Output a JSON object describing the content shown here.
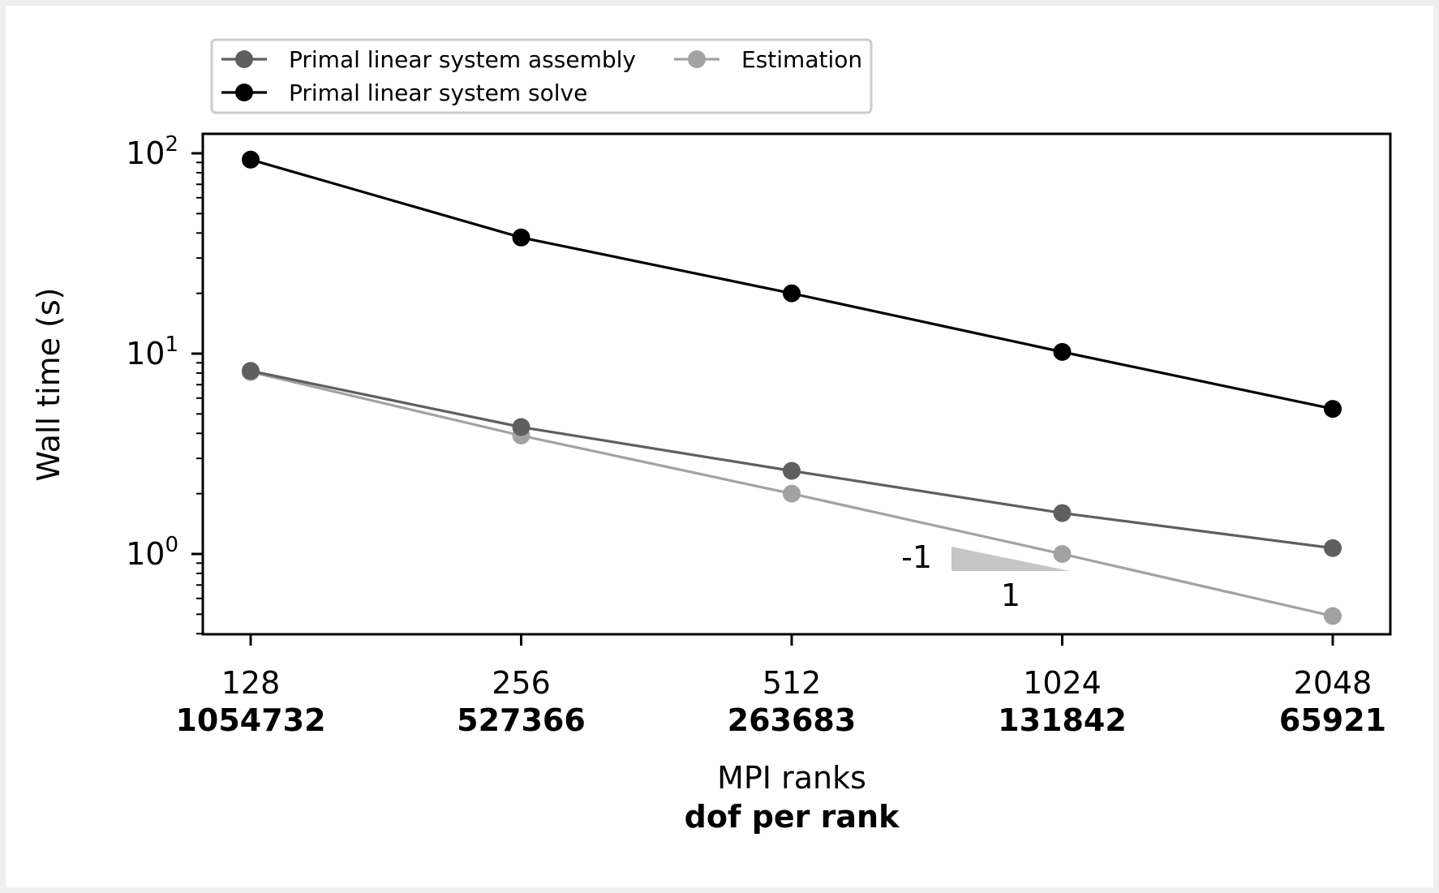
{
  "chart_data": {
    "type": "line",
    "x": [
      128,
      256,
      512,
      1024,
      2048
    ],
    "x_secondary": [
      "1054732",
      "527366",
      "263683",
      "131842",
      "65921"
    ],
    "xticklabels": [
      "128",
      "256",
      "512",
      "1024",
      "2048"
    ],
    "xlabel": "MPI ranks",
    "xlabel_secondary": "dof per rank",
    "ylabel": "Wall time (s)",
    "yscale": "log",
    "ylim": [
      0.4,
      120
    ],
    "yticks": [
      {
        "base": "10",
        "exp": "0",
        "value": 1
      },
      {
        "base": "10",
        "exp": "1",
        "value": 10
      },
      {
        "base": "10",
        "exp": "2",
        "value": 100
      }
    ],
    "grid": false,
    "legend_position": "top-left, above plot",
    "series": [
      {
        "name": "Primal linear system assembly",
        "color": "#5f5f5f",
        "values": [
          8.2,
          4.3,
          2.6,
          1.6,
          1.07
        ]
      },
      {
        "name": "Primal linear system solve",
        "color": "#000000",
        "values": [
          93,
          38,
          20,
          10.2,
          5.3
        ]
      },
      {
        "name": "Estimation",
        "color": "#a2a2a2",
        "values": [
          8.1,
          3.9,
          2.0,
          1.0,
          0.49
        ]
      }
    ],
    "annotation": {
      "slope_label": "-1",
      "run_label": "1",
      "color": "#c6c6c6"
    }
  }
}
